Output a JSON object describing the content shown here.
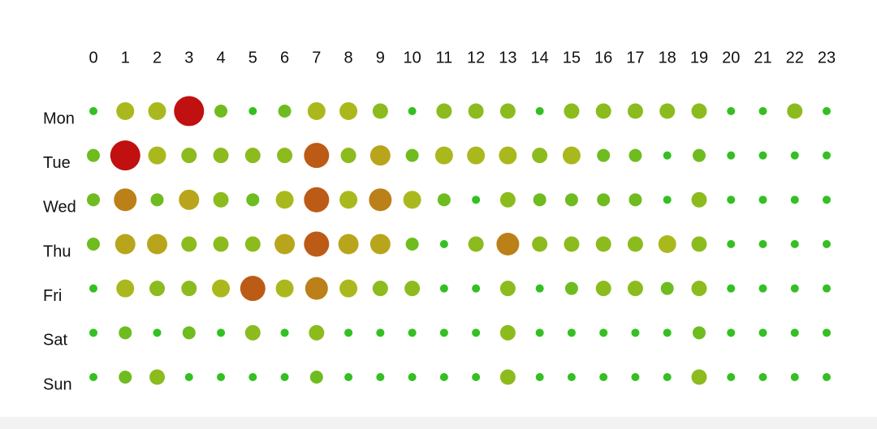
{
  "chart_data": {
    "type": "punchcard",
    "x": [
      0,
      1,
      2,
      3,
      4,
      5,
      6,
      7,
      8,
      9,
      10,
      11,
      12,
      13,
      14,
      15,
      16,
      17,
      18,
      19,
      20,
      21,
      22,
      23
    ],
    "categories": [
      "Mon",
      "Tue",
      "Wed",
      "Thu",
      "Fri",
      "Sat",
      "Sun"
    ],
    "values": [
      [
        1,
        5,
        5,
        10,
        3,
        1,
        3,
        5,
        5,
        4,
        1,
        4,
        4,
        4,
        1,
        4,
        4,
        4,
        4,
        4,
        1,
        1,
        4,
        1
      ],
      [
        3,
        10,
        5,
        4,
        4,
        4,
        4,
        8,
        4,
        6,
        3,
        5,
        5,
        5,
        4,
        5,
        3,
        3,
        1,
        3,
        1,
        1,
        1,
        1
      ],
      [
        3,
        7,
        3,
        6,
        4,
        3,
        5,
        8,
        5,
        7,
        5,
        3,
        1,
        4,
        3,
        3,
        3,
        3,
        1,
        4,
        1,
        1,
        1,
        1
      ],
      [
        3,
        6,
        6,
        4,
        4,
        4,
        6,
        8,
        6,
        6,
        3,
        1,
        4,
        7,
        4,
        4,
        4,
        4,
        5,
        4,
        1,
        1,
        1,
        1
      ],
      [
        1,
        5,
        4,
        4,
        5,
        8,
        5,
        7,
        5,
        4,
        4,
        1,
        1,
        4,
        1,
        3,
        4,
        4,
        3,
        4,
        1,
        1,
        1,
        1
      ],
      [
        1,
        3,
        1,
        3,
        1,
        4,
        1,
        4,
        1,
        1,
        1,
        1,
        1,
        4,
        1,
        1,
        1,
        1,
        1,
        3,
        1,
        1,
        1,
        1
      ],
      [
        1,
        3,
        4,
        1,
        1,
        1,
        1,
        3,
        1,
        1,
        1,
        1,
        1,
        4,
        1,
        1,
        1,
        1,
        1,
        4,
        1,
        1,
        1,
        1
      ]
    ],
    "color_scale": [
      "#33c022",
      "#b8b81c",
      "#c01010"
    ]
  }
}
